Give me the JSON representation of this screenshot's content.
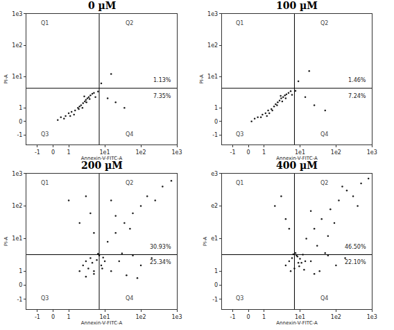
{
  "chart_data": [
    {
      "type": "scatter",
      "title": "0 µM",
      "x_label": "Annexin-V-FITC-A",
      "y_label": "PI-A",
      "grid": false,
      "color": "#1a1a1a",
      "marker": "dot",
      "xlim": [
        -1.7,
        1000
      ],
      "ylim": [
        -1.7,
        1000
      ],
      "xticks": [
        -1,
        0,
        1,
        {
          "value": 10,
          "label": "1e1"
        },
        {
          "value": 100,
          "label": "1e2"
        },
        {
          "value": 1000,
          "label": "1e3"
        }
      ],
      "yticks": [
        -1,
        0,
        1,
        {
          "value": 10,
          "label": "1e1"
        },
        {
          "value": 100,
          "label": "1e2"
        },
        {
          "value": 1000,
          "label": "1e3"
        }
      ],
      "gates": {
        "x": 7,
        "y": 4.2
      },
      "quadrants": [
        {
          "name": "Q1"
        },
        {
          "name": "Q2",
          "value": 1.13,
          "value_label": "1.13%"
        },
        {
          "name": "Q3"
        },
        {
          "name": "Q4",
          "value": 7.35,
          "value_label": "7.35%"
        }
      ],
      "x": [
        0.3,
        0.5,
        0.8,
        1,
        1.2,
        1.5,
        1.8,
        2,
        2.2,
        2.5,
        2.8,
        3,
        3.3,
        3.6,
        4,
        4.5,
        5,
        1.4,
        1.9,
        2.4,
        3.1,
        0.7,
        1.1,
        2.7,
        3.8,
        5.5,
        6.5,
        12,
        20,
        35,
        8,
        15
      ],
      "y": [
        0.1,
        0.3,
        0.4,
        0.6,
        0.7,
        0.8,
        1,
        1.1,
        1.2,
        1.4,
        1.6,
        1.8,
        2,
        2.2,
        2.5,
        2.8,
        3,
        0.5,
        0.9,
        1,
        1.5,
        0.2,
        0.4,
        2.3,
        1.9,
        2.2,
        3.3,
        2,
        1.5,
        1,
        6,
        12
      ]
    },
    {
      "type": "scatter",
      "title": "100 µM",
      "x_label": "Annexin-V-FITC-A",
      "y_label": "PI-A",
      "grid": false,
      "color": "#1a1a1a",
      "marker": "dot",
      "xlim": [
        -1.7,
        1000
      ],
      "ylim": [
        -1.7,
        1000
      ],
      "xticks": [
        -1,
        0,
        1,
        {
          "value": 10,
          "label": "1e1"
        },
        {
          "value": 100,
          "label": "1e2"
        },
        {
          "value": 1000,
          "label": "1e3"
        }
      ],
      "yticks": [
        -1,
        0,
        1,
        {
          "value": 10,
          "label": "1e1"
        },
        {
          "value": 100,
          "label": "1e2"
        },
        {
          "value": 1000,
          "label": "1e3"
        }
      ],
      "gates": {
        "x": 7,
        "y": 4.2
      },
      "quadrants": [
        {
          "name": "Q1"
        },
        {
          "name": "Q2",
          "value": 1.46,
          "value_label": "1.46%"
        },
        {
          "name": "Q3"
        },
        {
          "name": "Q4",
          "value": 7.24,
          "value_label": "7.24%"
        }
      ],
      "x": [
        0.2,
        0.4,
        0.6,
        0.9,
        1.1,
        1.3,
        1.6,
        1.9,
        2.1,
        2.4,
        2.7,
        3,
        3.4,
        3.8,
        4.2,
        4.8,
        5.5,
        1.2,
        1.7,
        2.3,
        3.2,
        0.8,
        1.4,
        2.9,
        4,
        6,
        7.5,
        14,
        25,
        50,
        9,
        18
      ],
      "y": [
        0,
        0.2,
        0.3,
        0.5,
        0.6,
        0.8,
        0.9,
        1.1,
        1.3,
        1.5,
        1.7,
        2,
        2.2,
        2.5,
        2.7,
        3,
        3.4,
        0.4,
        0.8,
        1.2,
        1.6,
        0.3,
        0.6,
        2.4,
        2,
        2.6,
        3.5,
        2.2,
        1.2,
        0.8,
        7,
        15
      ]
    },
    {
      "type": "scatter",
      "title": "200 µM",
      "x_label": "Annexin-V-FITC-A",
      "y_label": "PI-A",
      "grid": false,
      "color": "#1a1a1a",
      "marker": "dot",
      "xlim": [
        -1.7,
        1000
      ],
      "ylim": [
        -1.7,
        1000
      ],
      "xticks": [
        -1,
        0,
        1,
        {
          "value": 10,
          "label": "1e1"
        },
        {
          "value": 100,
          "label": "1e2"
        },
        {
          "value": 1000,
          "label": "1e3"
        }
      ],
      "yticks": [
        -1,
        0,
        1,
        {
          "value": 10,
          "label": "1e1"
        },
        {
          "value": 100,
          "label": "1e2"
        },
        {
          "value": 1000,
          "label": "1e3"
        }
      ],
      "gates": {
        "x": 7,
        "y": 3.2
      },
      "quadrants": [
        {
          "name": "Q1"
        },
        {
          "name": "Q2",
          "value": 30.93,
          "value_label": "30.93%"
        },
        {
          "name": "Q3"
        },
        {
          "name": "Q4",
          "value": 25.34,
          "value_label": "25.34%"
        }
      ],
      "x": [
        2,
        2.5,
        3,
        3.5,
        4,
        4.5,
        5,
        6,
        7,
        8,
        9,
        10,
        3,
        5,
        6.5,
        8.5,
        15,
        25,
        40,
        60,
        100,
        200,
        30,
        80,
        12,
        20,
        35,
        60,
        100,
        150,
        250,
        400,
        700,
        50,
        20,
        15,
        1,
        2,
        3,
        5,
        4
      ],
      "y": [
        1,
        1.5,
        2,
        1.2,
        2.5,
        1.8,
        1,
        2.2,
        3,
        1.5,
        2.6,
        2,
        0.6,
        0.8,
        3.4,
        1.2,
        1,
        2,
        0.7,
        3,
        1.5,
        2.5,
        3.5,
        0.5,
        8,
        15,
        30,
        60,
        100,
        200,
        150,
        400,
        600,
        20,
        50,
        150,
        150,
        30,
        200,
        15,
        60
      ]
    },
    {
      "type": "scatter",
      "title": "400 µM",
      "x_label": "Annexin-V-FITC-A",
      "y_label": "PI-A",
      "grid": false,
      "color": "#1a1a1a",
      "marker": "dot",
      "xlim": [
        -1.7,
        1000
      ],
      "ylim": [
        -1.7,
        1000
      ],
      "xticks": [
        -1,
        0,
        1,
        {
          "value": 10,
          "label": "1e1"
        },
        {
          "value": 100,
          "label": "1e2"
        },
        {
          "value": 1000,
          "label": "1e3"
        }
      ],
      "yticks": [
        -1,
        0,
        1,
        {
          "value": 10,
          "label": "e1"
        },
        {
          "value": 100,
          "label": "e2"
        },
        {
          "value": 1000,
          "label": "e3"
        }
      ],
      "gates": {
        "x": 7,
        "y": 3.2
      },
      "quadrants": [
        {
          "name": "Q1"
        },
        {
          "name": "Q2",
          "value": 46.5,
          "value_label": "46.50%"
        },
        {
          "name": "Q3"
        },
        {
          "name": "Q4",
          "value": 22.1,
          "value_label": "22.10%"
        }
      ],
      "x": [
        4,
        5,
        6,
        7,
        8,
        9,
        10,
        12,
        14,
        5.5,
        7.5,
        9.5,
        11,
        6.5,
        8.5,
        13,
        20,
        35,
        60,
        100,
        180,
        25,
        50,
        15,
        25,
        40,
        70,
        120,
        200,
        300,
        500,
        800,
        30,
        60,
        90,
        20,
        150,
        400,
        2,
        3,
        5,
        4
      ],
      "y": [
        1.5,
        2,
        2.5,
        1.2,
        3,
        1.8,
        2.4,
        3.2,
        2,
        1,
        3.6,
        1.4,
        1.8,
        3.3,
        2.8,
        1.1,
        2,
        1,
        3,
        1.5,
        2.5,
        0.8,
        3.6,
        10,
        20,
        40,
        80,
        150,
        300,
        200,
        500,
        700,
        6,
        12,
        30,
        70,
        400,
        100,
        100,
        200,
        20,
        40
      ]
    }
  ]
}
